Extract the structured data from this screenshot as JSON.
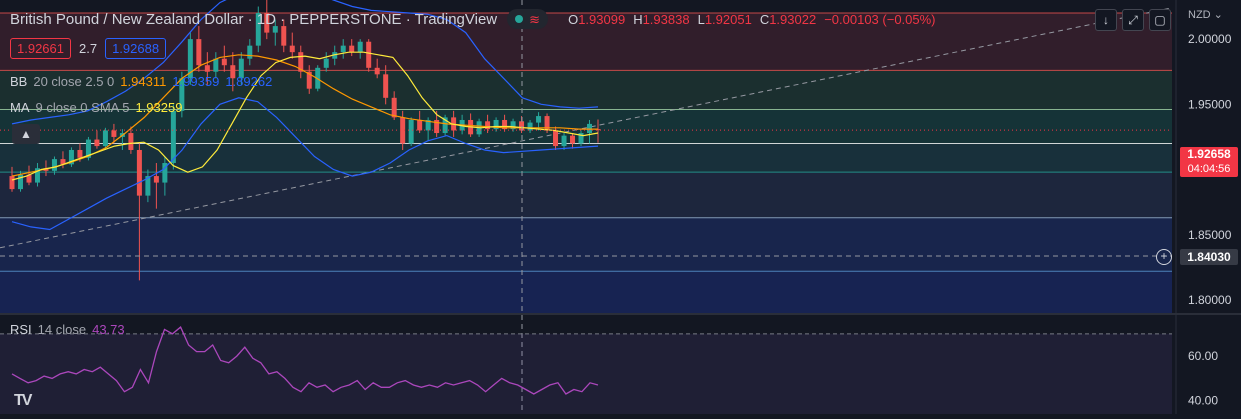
{
  "header": {
    "title": "British Pound / New Zealand Dollar · 1D · PEPPERSTONE · TradingView",
    "ohlc": [
      {
        "k": "O",
        "v": "1.93099"
      },
      {
        "k": "H",
        "v": "1.93838"
      },
      {
        "k": "L",
        "v": "1.92051"
      },
      {
        "k": "C",
        "v": "1.93022"
      }
    ],
    "change": "−0.00103 (−0.05%)"
  },
  "quote": {
    "bid": "1.92661",
    "spread": "2.7",
    "ask": "1.92688"
  },
  "indicators": {
    "bb": {
      "name": "BB",
      "params": "20 close 2.5 0",
      "basis": "1.94311",
      "upper": "1.99359",
      "lower": "1.89262"
    },
    "ma": {
      "name": "MA",
      "params": "9 close 0 SMA 5",
      "value": "1.93259"
    },
    "rsi": {
      "name": "RSI",
      "params": "14 close",
      "value": "43.73"
    }
  },
  "toolbar": {
    "currency": "NZD"
  },
  "price_tags": {
    "last": "1.92658",
    "countdown": "04:04:56",
    "crosshair": "1.84030"
  },
  "colors": {
    "up": "#26a69a",
    "down": "#ef5350",
    "bb": "#2962ff",
    "ma": "#ffeb3b",
    "basis": "#ff9800",
    "rsi": "#ab47bc",
    "bg": "#131722"
  },
  "chart_data": {
    "type": "candlestick",
    "symbol": "GBPNZD",
    "interval": "1D",
    "price_axis_ticks": [
      1.8,
      1.85,
      1.9,
      1.95,
      2.0
    ],
    "price_axis_labels": [
      "1.80000",
      "1.85000",
      "1.90000",
      "1.95000",
      "2.00000"
    ],
    "ylim": [
      1.79,
      2.03
    ],
    "fib_levels": [
      1.822,
      1.863,
      1.898,
      1.92,
      1.946,
      1.976,
      2.02
    ],
    "fib_zone_colors": [
      "#1e3270",
      "#263354",
      "#1e4650",
      "#184a48",
      "#23443a",
      "#4a2433"
    ],
    "candles": [
      [
        1.895,
        1.902,
        1.883,
        1.885
      ],
      [
        1.885,
        1.899,
        1.883,
        1.896
      ],
      [
        1.896,
        1.903,
        1.888,
        1.89
      ],
      [
        1.89,
        1.905,
        1.887,
        1.901
      ],
      [
        1.901,
        1.907,
        1.895,
        1.899
      ],
      [
        1.899,
        1.91,
        1.896,
        1.908
      ],
      [
        1.908,
        1.914,
        1.901,
        1.904
      ],
      [
        1.904,
        1.917,
        1.902,
        1.915
      ],
      [
        1.915,
        1.92,
        1.906,
        1.909
      ],
      [
        1.909,
        1.925,
        1.907,
        1.923
      ],
      [
        1.923,
        1.93,
        1.916,
        1.918
      ],
      [
        1.918,
        1.932,
        1.915,
        1.93
      ],
      [
        1.93,
        1.935,
        1.92,
        1.925
      ],
      [
        1.925,
        1.931,
        1.915,
        1.928
      ],
      [
        1.928,
        1.933,
        1.912,
        1.915
      ],
      [
        1.915,
        1.92,
        1.815,
        1.88
      ],
      [
        1.88,
        1.9,
        1.875,
        1.895
      ],
      [
        1.895,
        1.905,
        1.87,
        1.89
      ],
      [
        1.89,
        1.91,
        1.88,
        1.905
      ],
      [
        1.905,
        1.95,
        1.9,
        1.945
      ],
      [
        1.945,
        1.975,
        1.94,
        1.97
      ],
      [
        1.97,
        2.005,
        1.965,
        2.0
      ],
      [
        2.0,
        2.01,
        1.975,
        1.98
      ],
      [
        1.98,
        1.99,
        1.965,
        1.975
      ],
      [
        1.975,
        1.99,
        1.97,
        1.985
      ],
      [
        1.985,
        1.995,
        1.975,
        1.98
      ],
      [
        1.98,
        1.99,
        1.96,
        1.97
      ],
      [
        1.97,
        1.99,
        1.965,
        1.985
      ],
      [
        1.985,
        2.0,
        1.98,
        1.995
      ],
      [
        1.995,
        2.025,
        1.99,
        2.02
      ],
      [
        2.02,
        2.03,
        2.0,
        2.005
      ],
      [
        2.005,
        2.015,
        1.995,
        2.01
      ],
      [
        2.01,
        2.015,
        1.99,
        1.995
      ],
      [
        1.995,
        2.005,
        1.985,
        1.99
      ],
      [
        1.99,
        1.995,
        1.97,
        1.975
      ],
      [
        1.975,
        1.98,
        1.958,
        1.962
      ],
      [
        1.962,
        1.98,
        1.96,
        1.978
      ],
      [
        1.978,
        1.99,
        1.975,
        1.985
      ],
      [
        1.985,
        1.995,
        1.98,
        1.99
      ],
      [
        1.99,
        2.0,
        1.985,
        1.995
      ],
      [
        1.995,
        2.0,
        1.987,
        1.99
      ],
      [
        1.99,
        2.0,
        1.985,
        1.998
      ],
      [
        1.998,
        2.0,
        1.975,
        1.978
      ],
      [
        1.978,
        1.985,
        1.97,
        1.973
      ],
      [
        1.973,
        1.98,
        1.95,
        1.955
      ],
      [
        1.955,
        1.96,
        1.938,
        1.94
      ],
      [
        1.94,
        1.945,
        1.915,
        1.92
      ],
      [
        1.92,
        1.94,
        1.918,
        1.938
      ],
      [
        1.938,
        1.945,
        1.928,
        1.93
      ],
      [
        1.93,
        1.94,
        1.922,
        1.938
      ],
      [
        1.938,
        1.945,
        1.925,
        1.928
      ],
      [
        1.928,
        1.942,
        1.926,
        1.94
      ],
      [
        1.94,
        1.945,
        1.925,
        1.93
      ],
      [
        1.93,
        1.942,
        1.927,
        1.938
      ],
      [
        1.938,
        1.943,
        1.925,
        1.927
      ],
      [
        1.927,
        1.939,
        1.925,
        1.937
      ],
      [
        1.937,
        1.942,
        1.928,
        1.931
      ],
      [
        1.931,
        1.94,
        1.929,
        1.938
      ],
      [
        1.938,
        1.942,
        1.929,
        1.931
      ],
      [
        1.931,
        1.939,
        1.929,
        1.937
      ],
      [
        1.937,
        1.941,
        1.928,
        1.93
      ],
      [
        1.93,
        1.938,
        1.928,
        1.936
      ],
      [
        1.936,
        1.944,
        1.93,
        1.941
      ],
      [
        1.941,
        1.943,
        1.928,
        1.93
      ],
      [
        1.93,
        1.933,
        1.915,
        1.918
      ],
      [
        1.918,
        1.928,
        1.915,
        1.926
      ],
      [
        1.926,
        1.928,
        1.916,
        1.92
      ],
      [
        1.92,
        1.93,
        1.918,
        1.928
      ],
      [
        1.928,
        1.938,
        1.92,
        1.935
      ],
      [
        1.931,
        1.9384,
        1.9205,
        1.9302
      ]
    ],
    "moving_averages": {
      "bb_upper": [
        1.935,
        1.938,
        1.94,
        1.942,
        1.945,
        1.952,
        1.96,
        1.97,
        1.982,
        1.998,
        2.015,
        2.028,
        2.035,
        2.038,
        2.04,
        2.038,
        2.035,
        2.03,
        2.025,
        2.022,
        2.021,
        2.02,
        2.019,
        2.015,
        2.005,
        1.985,
        1.97,
        1.955,
        1.95,
        1.948,
        1.947,
        1.948
      ],
      "bb_basis": [
        1.895,
        1.898,
        1.901,
        1.905,
        1.91,
        1.917,
        1.928,
        1.94,
        1.955,
        1.97,
        1.98,
        1.986,
        1.988,
        1.987,
        1.984,
        1.979,
        1.971,
        1.962,
        1.954,
        1.948,
        1.942,
        1.939,
        1.937,
        1.935,
        1.934,
        1.933,
        1.932,
        1.932,
        1.932,
        1.932,
        1.931,
        1.931
      ],
      "bb_lower": [
        1.86,
        1.856,
        1.854,
        1.862,
        1.87,
        1.878,
        1.885,
        1.892,
        1.9,
        1.915,
        1.935,
        1.95,
        1.955,
        1.952,
        1.94,
        1.925,
        1.91,
        1.9,
        1.895,
        1.898,
        1.905,
        1.915,
        1.922,
        1.926,
        1.92,
        1.915,
        1.913,
        1.914,
        1.915,
        1.916,
        1.917,
        1.918
      ],
      "ma": [
        1.892,
        1.895,
        1.9,
        1.902,
        1.906,
        1.91,
        1.914,
        1.918,
        1.92,
        1.921,
        1.915,
        1.903,
        1.898,
        1.902,
        1.915,
        1.935,
        1.955,
        1.972,
        1.982,
        1.986,
        1.987,
        1.985,
        1.988,
        1.99,
        1.99,
        1.988,
        1.986,
        1.972,
        1.955,
        1.942,
        1.935,
        1.933,
        1.932,
        1.933,
        1.933,
        1.932,
        1.931,
        1.93,
        1.928,
        1.926,
        1.928
      ]
    },
    "trendline": [
      [
        1.84,
        2.024
      ]
    ],
    "rsi": {
      "ticks": [
        40,
        60
      ],
      "tick_labels": [
        "40.00",
        "60.00"
      ],
      "ylim": [
        34,
        78
      ],
      "values": [
        52,
        50,
        48,
        49,
        51,
        50,
        52,
        53,
        52,
        54,
        53,
        55,
        52,
        49,
        44,
        46,
        54,
        48,
        62,
        72,
        70,
        73,
        65,
        62,
        62,
        65,
        58,
        57,
        60,
        64,
        59,
        57,
        52,
        53,
        50,
        46,
        44,
        48,
        46,
        47,
        44,
        46,
        47,
        49,
        45,
        48,
        46,
        46,
        48,
        49,
        47,
        46,
        47,
        46,
        48,
        47,
        48,
        49,
        47,
        44,
        47,
        50,
        48,
        47,
        45,
        43,
        45,
        47,
        48,
        43,
        45,
        44,
        48,
        47
      ]
    }
  }
}
